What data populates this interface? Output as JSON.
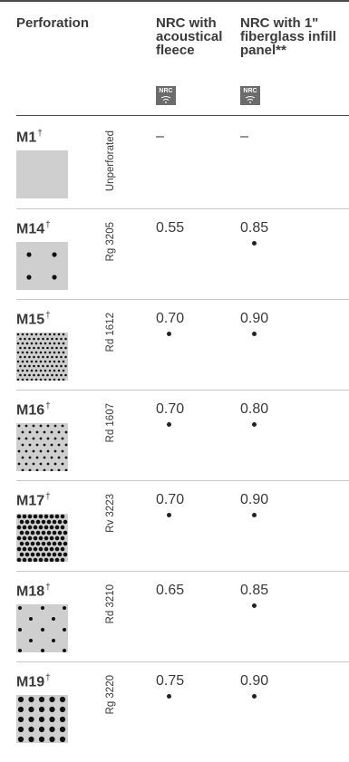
{
  "header": {
    "perforation": "Perforation",
    "col1": "NRC with acoustical fleece",
    "col2": "NRC with 1\" fiberglass infill panel**",
    "badge_text": "NRC"
  },
  "rows": [
    {
      "code": "M1",
      "mark": "†",
      "pattern": "Unperforated",
      "nrc_fleece": "–",
      "nrc_fiberglass": "–",
      "dot_fleece": false,
      "dot_fiberglass": false
    },
    {
      "code": "M14",
      "mark": "†",
      "pattern": "Rg 3205",
      "nrc_fleece": "0.55",
      "nrc_fiberglass": "0.85",
      "dot_fleece": false,
      "dot_fiberglass": true
    },
    {
      "code": "M15",
      "mark": "†",
      "pattern": "Rd 1612",
      "nrc_fleece": "0.70",
      "nrc_fiberglass": "0.90",
      "dot_fleece": true,
      "dot_fiberglass": true
    },
    {
      "code": "M16",
      "mark": "†",
      "pattern": "Rd 1607",
      "nrc_fleece": "0.70",
      "nrc_fiberglass": "0.80",
      "dot_fleece": true,
      "dot_fiberglass": true
    },
    {
      "code": "M17",
      "mark": "†",
      "pattern": "Rv 3223",
      "nrc_fleece": "0.70",
      "nrc_fiberglass": "0.90",
      "dot_fleece": true,
      "dot_fiberglass": true
    },
    {
      "code": "M18",
      "mark": "†",
      "pattern": "Rd 3210",
      "nrc_fleece": "0.65",
      "nrc_fiberglass": "0.85",
      "dot_fleece": false,
      "dot_fiberglass": true
    },
    {
      "code": "M19",
      "mark": "†",
      "pattern": "Rg 3220",
      "nrc_fleece": "0.75",
      "nrc_fiberglass": "0.90",
      "dot_fleece": true,
      "dot_fiberglass": true
    }
  ]
}
